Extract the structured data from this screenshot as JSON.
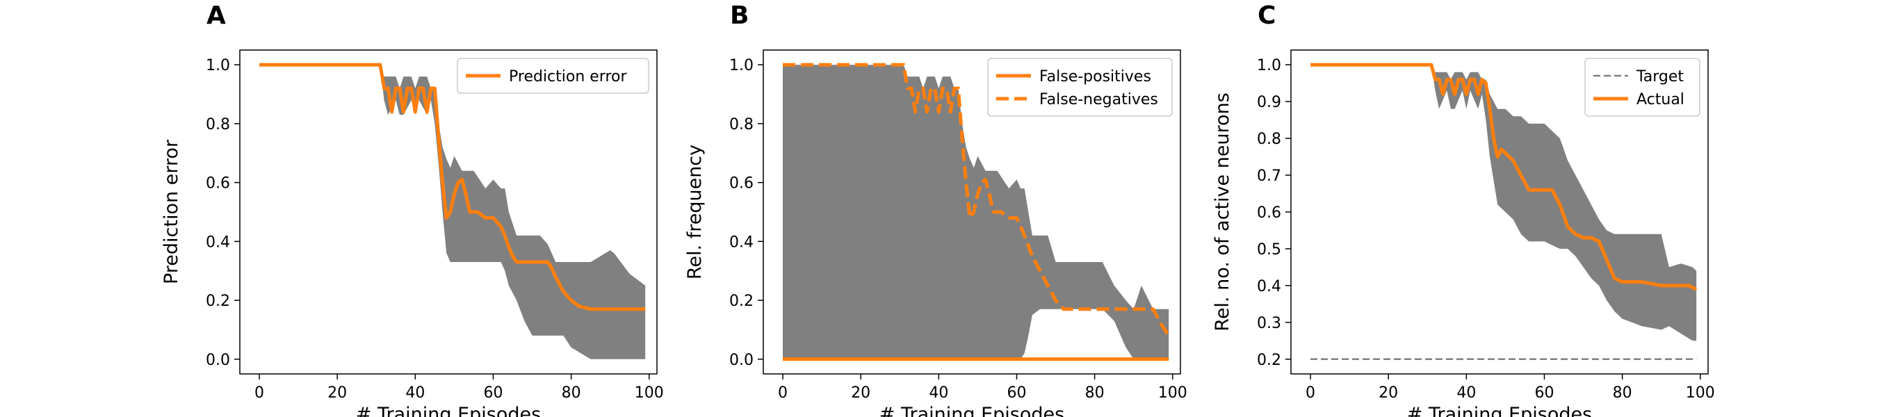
{
  "chart_data": [
    {
      "panel": "A",
      "type": "line",
      "xlabel": "# Training Episodes",
      "ylabel": "Prediction error",
      "xlim": [
        -5,
        102
      ],
      "ylim": [
        -0.05,
        1.05
      ],
      "xticks": [
        "0",
        "20",
        "40",
        "60",
        "80",
        "100"
      ],
      "yticks": [
        "0.0",
        "0.2",
        "0.4",
        "0.6",
        "0.8",
        "1.0"
      ],
      "legend_position": "top-right",
      "band": {
        "color": "#808080",
        "x": [
          0,
          31,
          32,
          33,
          35,
          36,
          37,
          39,
          40,
          41,
          43,
          44,
          45,
          46,
          47,
          48,
          49,
          50,
          52,
          53,
          55,
          58,
          60,
          62,
          63,
          64,
          66,
          68,
          70,
          72,
          74,
          75,
          76,
          78,
          80,
          85,
          90,
          91,
          95,
          99
        ],
        "upper": [
          1.0,
          1.0,
          0.96,
          0.96,
          0.96,
          0.92,
          0.96,
          0.96,
          0.92,
          0.96,
          0.96,
          0.92,
          0.92,
          0.8,
          0.72,
          0.68,
          0.65,
          0.69,
          0.64,
          0.64,
          0.64,
          0.58,
          0.61,
          0.58,
          0.58,
          0.5,
          0.42,
          0.42,
          0.42,
          0.42,
          0.39,
          0.36,
          0.33,
          0.33,
          0.33,
          0.33,
          0.37,
          0.36,
          0.29,
          0.25
        ],
        "lower": [
          1.0,
          1.0,
          0.88,
          0.83,
          0.88,
          0.83,
          0.83,
          0.88,
          0.83,
          0.88,
          0.83,
          0.88,
          0.8,
          0.66,
          0.5,
          0.36,
          0.33,
          0.33,
          0.33,
          0.33,
          0.33,
          0.33,
          0.33,
          0.33,
          0.3,
          0.25,
          0.2,
          0.13,
          0.08,
          0.08,
          0.08,
          0.08,
          0.08,
          0.08,
          0.04,
          0.0,
          0.0,
          0.0,
          0.0,
          0.0
        ]
      },
      "series": [
        {
          "name": "Prediction error",
          "color": "#ff7f0e",
          "dash": "solid",
          "x": [
            0,
            31,
            32,
            33,
            34,
            35,
            36,
            37,
            38,
            39,
            40,
            41,
            42,
            43,
            44,
            45,
            46,
            47,
            48,
            49,
            50,
            51,
            52,
            53,
            54,
            55,
            56,
            58,
            60,
            62,
            63,
            64,
            65,
            66,
            68,
            70,
            74,
            75,
            76,
            78,
            80,
            82,
            85,
            90,
            99
          ],
          "y": [
            1.0,
            1.0,
            0.92,
            0.92,
            0.84,
            0.92,
            0.92,
            0.84,
            0.92,
            0.92,
            0.84,
            0.92,
            0.92,
            0.84,
            0.92,
            0.92,
            0.75,
            0.6,
            0.48,
            0.5,
            0.56,
            0.6,
            0.61,
            0.56,
            0.5,
            0.5,
            0.5,
            0.48,
            0.48,
            0.45,
            0.42,
            0.38,
            0.35,
            0.33,
            0.33,
            0.33,
            0.33,
            0.31,
            0.28,
            0.23,
            0.2,
            0.18,
            0.17,
            0.17,
            0.17
          ]
        }
      ]
    },
    {
      "panel": "B",
      "type": "line",
      "xlabel": "# Training Episodes",
      "ylabel": "Rel. frequency",
      "xlim": [
        -5,
        102
      ],
      "ylim": [
        -0.05,
        1.05
      ],
      "xticks": [
        "0",
        "20",
        "40",
        "60",
        "80",
        "100"
      ],
      "yticks": [
        "0.0",
        "0.2",
        "0.4",
        "0.6",
        "0.8",
        "1.0"
      ],
      "legend_position": "top-right",
      "band": {
        "color": "#808080",
        "x": [
          0,
          31,
          32,
          33,
          35,
          36,
          37,
          39,
          40,
          41,
          43,
          44,
          45,
          46,
          47,
          48,
          49,
          50,
          52,
          53,
          55,
          58,
          60,
          61,
          62,
          63,
          64,
          66,
          68,
          70,
          72,
          74,
          76,
          78,
          80,
          82,
          85,
          88,
          90,
          92,
          95,
          99
        ],
        "upper": [
          1.0,
          1.0,
          0.96,
          0.96,
          0.96,
          0.92,
          0.96,
          0.96,
          0.92,
          0.96,
          0.96,
          0.92,
          0.92,
          0.8,
          0.72,
          0.68,
          0.65,
          0.69,
          0.64,
          0.64,
          0.64,
          0.58,
          0.61,
          0.58,
          0.58,
          0.5,
          0.42,
          0.42,
          0.42,
          0.33,
          0.33,
          0.33,
          0.33,
          0.33,
          0.33,
          0.33,
          0.25,
          0.2,
          0.17,
          0.25,
          0.17,
          0.17
        ],
        "lower": [
          0.0,
          0.0,
          0.0,
          0.0,
          0.0,
          0.0,
          0.0,
          0.0,
          0.0,
          0.0,
          0.0,
          0.0,
          0.0,
          0.0,
          0.0,
          0.0,
          0.0,
          0.0,
          0.0,
          0.0,
          0.0,
          0.0,
          0.0,
          0.0,
          0.02,
          0.08,
          0.15,
          0.17,
          0.17,
          0.17,
          0.17,
          0.17,
          0.17,
          0.17,
          0.17,
          0.17,
          0.13,
          0.04,
          0.0,
          0.0,
          0.0,
          0.0
        ]
      },
      "series": [
        {
          "name": "False-positives",
          "color": "#ff7f0e",
          "dash": "solid",
          "x": [
            0,
            99
          ],
          "y": [
            0.0,
            0.0
          ]
        },
        {
          "name": "False-negatives",
          "color": "#ff7f0e",
          "dash": "dashed",
          "x": [
            0,
            31,
            32,
            33,
            34,
            35,
            36,
            37,
            38,
            39,
            40,
            41,
            42,
            43,
            44,
            45,
            46,
            47,
            48,
            49,
            50,
            51,
            52,
            53,
            54,
            55,
            56,
            58,
            60,
            62,
            64,
            66,
            68,
            70,
            72,
            75,
            80,
            85,
            90,
            95,
            97,
            99
          ],
          "y": [
            1.0,
            1.0,
            0.92,
            0.92,
            0.84,
            0.92,
            0.92,
            0.84,
            0.92,
            0.92,
            0.84,
            0.92,
            0.92,
            0.84,
            0.92,
            0.92,
            0.75,
            0.6,
            0.48,
            0.5,
            0.56,
            0.6,
            0.61,
            0.56,
            0.5,
            0.5,
            0.5,
            0.48,
            0.48,
            0.42,
            0.35,
            0.3,
            0.25,
            0.2,
            0.17,
            0.17,
            0.17,
            0.17,
            0.17,
            0.17,
            0.12,
            0.08
          ]
        }
      ]
    },
    {
      "panel": "C",
      "type": "line",
      "xlabel": "# Training Episodes",
      "ylabel": "Rel. no. of active neurons",
      "xlim": [
        -5,
        102
      ],
      "ylim": [
        0.16,
        1.04
      ],
      "xticks": [
        "0",
        "20",
        "40",
        "60",
        "80",
        "100"
      ],
      "yticks": [
        "0.2",
        "0.3",
        "0.4",
        "0.5",
        "0.6",
        "0.7",
        "0.8",
        "0.9",
        "1.0"
      ],
      "legend_position": "top-right",
      "band": {
        "color": "#808080",
        "x": [
          0,
          31,
          32,
          33,
          35,
          36,
          37,
          39,
          40,
          41,
          43,
          44,
          45,
          46,
          48,
          50,
          52,
          54,
          56,
          58,
          60,
          62,
          64,
          66,
          68,
          70,
          72,
          74,
          76,
          78,
          80,
          85,
          90,
          92,
          95,
          98,
          99
        ],
        "upper": [
          1.0,
          1.0,
          0.98,
          0.98,
          0.98,
          0.96,
          0.98,
          0.98,
          0.96,
          0.98,
          0.98,
          0.96,
          0.96,
          0.92,
          0.88,
          0.88,
          0.86,
          0.86,
          0.84,
          0.84,
          0.84,
          0.82,
          0.8,
          0.74,
          0.7,
          0.66,
          0.62,
          0.58,
          0.55,
          0.54,
          0.54,
          0.54,
          0.54,
          0.45,
          0.46,
          0.45,
          0.44
        ],
        "lower": [
          1.0,
          1.0,
          0.93,
          0.88,
          0.93,
          0.88,
          0.88,
          0.93,
          0.88,
          0.93,
          0.88,
          0.92,
          0.85,
          0.75,
          0.62,
          0.6,
          0.58,
          0.54,
          0.52,
          0.52,
          0.52,
          0.51,
          0.5,
          0.5,
          0.48,
          0.45,
          0.42,
          0.4,
          0.36,
          0.33,
          0.31,
          0.29,
          0.28,
          0.29,
          0.27,
          0.25,
          0.25
        ]
      },
      "series": [
        {
          "name": "Target",
          "color": "#808080",
          "dash": "dashed",
          "x": [
            0,
            99
          ],
          "y": [
            0.2,
            0.2
          ]
        },
        {
          "name": "Actual",
          "color": "#ff7f0e",
          "dash": "solid",
          "x": [
            0,
            31,
            32,
            33,
            34,
            35,
            36,
            37,
            38,
            39,
            40,
            41,
            42,
            43,
            44,
            45,
            46,
            47,
            48,
            49,
            50,
            51,
            52,
            54,
            56,
            58,
            60,
            62,
            64,
            66,
            68,
            70,
            72,
            74,
            76,
            78,
            80,
            85,
            90,
            95,
            97,
            99
          ],
          "y": [
            1.0,
            1.0,
            0.96,
            0.96,
            0.92,
            0.96,
            0.96,
            0.92,
            0.96,
            0.96,
            0.92,
            0.96,
            0.96,
            0.92,
            0.96,
            0.95,
            0.88,
            0.8,
            0.75,
            0.77,
            0.76,
            0.75,
            0.74,
            0.7,
            0.66,
            0.66,
            0.66,
            0.66,
            0.62,
            0.56,
            0.54,
            0.53,
            0.53,
            0.52,
            0.47,
            0.42,
            0.41,
            0.41,
            0.4,
            0.4,
            0.4,
            0.39
          ]
        }
      ]
    }
  ]
}
